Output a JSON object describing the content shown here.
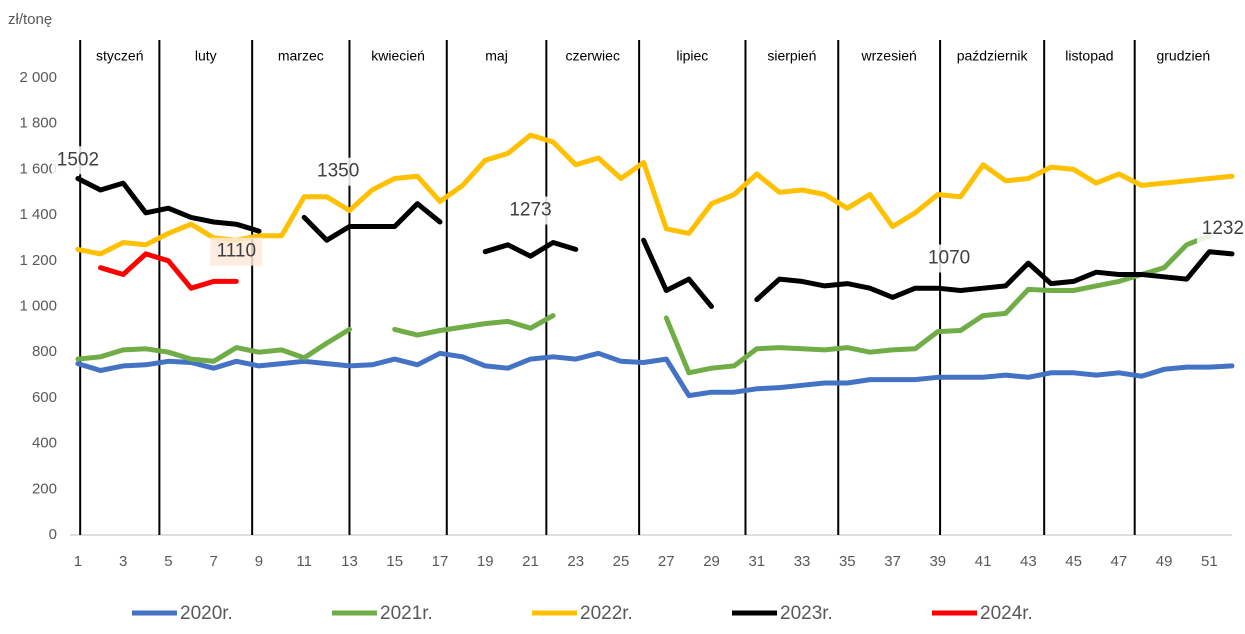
{
  "chart_data": {
    "type": "line",
    "y_label": "zł/tonę",
    "x": [
      1,
      2,
      3,
      4,
      5,
      6,
      7,
      8,
      9,
      10,
      11,
      12,
      13,
      14,
      15,
      16,
      17,
      18,
      19,
      20,
      21,
      22,
      23,
      24,
      25,
      26,
      27,
      28,
      29,
      30,
      31,
      32,
      33,
      34,
      35,
      36,
      37,
      38,
      39,
      40,
      41,
      42,
      43,
      44,
      45,
      46,
      47,
      48,
      49,
      50,
      51,
      52
    ],
    "xlim": [
      0.65,
      52
    ],
    "xticks": [
      1,
      3,
      5,
      7,
      9,
      11,
      13,
      15,
      17,
      19,
      21,
      23,
      25,
      27,
      29,
      31,
      33,
      35,
      37,
      39,
      41,
      43,
      45,
      47,
      49,
      51
    ],
    "ylim": [
      0,
      2000
    ],
    "yticks": [
      0,
      200,
      400,
      600,
      800,
      {
        "value": 1000,
        "label": "1 000"
      },
      {
        "value": 1200,
        "label": "1 200"
      },
      {
        "value": 1400,
        "label": "1 400"
      },
      {
        "value": 1600,
        "label": "1 600"
      },
      {
        "value": 1800,
        "label": "1 800"
      },
      {
        "value": 2000,
        "label": "2 000"
      }
    ],
    "grid": false,
    "legend": "bottom",
    "months": [
      "styczeń",
      "luty",
      "marzec",
      "kwiecień",
      "maj",
      "czerwiec",
      "lipiec",
      "sierpień",
      "wrzesień",
      "październik",
      "listopad",
      "grudzień"
    ],
    "month_starts": [
      1.1,
      4.6,
      8.7,
      13,
      17.3,
      21.7,
      25.8,
      30.5,
      34.6,
      39.1,
      43.7,
      47.7
    ],
    "series": [
      {
        "name": "2020r.",
        "color": "#4472c4",
        "values": [
          750,
          720,
          740,
          745,
          760,
          755,
          730,
          760,
          740,
          750,
          760,
          750,
          740,
          745,
          770,
          745,
          795,
          780,
          740,
          730,
          770,
          780,
          770,
          795,
          760,
          755,
          770,
          610,
          625,
          625,
          640,
          645,
          655,
          665,
          665,
          680,
          680,
          680,
          690,
          690,
          690,
          700,
          690,
          710,
          710,
          700,
          710,
          695,
          725,
          735,
          735,
          740
        ]
      },
      {
        "name": "2021r.",
        "color": "#70ad47",
        "values": [
          770,
          780,
          810,
          815,
          800,
          770,
          760,
          820,
          800,
          810,
          775,
          840,
          900,
          null,
          900,
          875,
          895,
          910,
          925,
          935,
          905,
          960,
          null,
          null,
          null,
          null,
          950,
          710,
          730,
          740,
          815,
          820,
          815,
          810,
          820,
          800,
          810,
          815,
          890,
          895,
          960,
          970,
          1075,
          1070,
          1070,
          1090,
          1110,
          1140,
          1170,
          1270,
          1310,
          null
        ]
      },
      {
        "name": "2022r.",
        "color": "#ffc000",
        "values": [
          1250,
          1230,
          1280,
          1270,
          1320,
          1360,
          1300,
          1290,
          1310,
          1310,
          1480,
          1480,
          1420,
          1510,
          1560,
          1570,
          1460,
          1530,
          1640,
          1670,
          1750,
          1720,
          1620,
          1650,
          1560,
          1630,
          1340,
          1320,
          1450,
          1490,
          1580,
          1500,
          1510,
          1490,
          1430,
          1490,
          1350,
          1410,
          1490,
          1480,
          1620,
          1550,
          1560,
          1610,
          1600,
          1540,
          1580,
          1530,
          1540,
          1550,
          1560,
          1570
        ]
      },
      {
        "name": "2023r.",
        "color": "#000000",
        "values": [
          1560,
          1510,
          1540,
          1410,
          1430,
          1390,
          1370,
          1360,
          1330,
          null,
          1390,
          1290,
          1350,
          1350,
          1350,
          1450,
          1370,
          null,
          1240,
          1270,
          1220,
          1280,
          1250,
          null,
          null,
          1290,
          1070,
          1120,
          1000,
          null,
          1030,
          1120,
          1110,
          1090,
          1100,
          1080,
          1040,
          1080,
          1080,
          1070,
          1080,
          1090,
          1190,
          1100,
          1110,
          1150,
          1140,
          1140,
          1130,
          1120,
          1240,
          1230
        ]
      },
      {
        "name": "2024r.",
        "color": "#ff0000",
        "values": [
          null,
          1170,
          1140,
          1230,
          1200,
          1080,
          1110,
          1110,
          null,
          null,
          null,
          null,
          null,
          null,
          null,
          null,
          null,
          null,
          null,
          null,
          null,
          null,
          null,
          null,
          null,
          null,
          null,
          null,
          null,
          null,
          null,
          null,
          null,
          null,
          null,
          null,
          null,
          null,
          null,
          null,
          null,
          null,
          null,
          null,
          null,
          null,
          null,
          null,
          null,
          null,
          null,
          null
        ]
      }
    ],
    "annotations": [
      {
        "text": "1502",
        "x": 1,
        "y": 1640
      },
      {
        "text": "1350",
        "x": 12.5,
        "y": 1590
      },
      {
        "text": "1110",
        "x": 8,
        "y": 1240
      },
      {
        "text": "1273",
        "x": 21,
        "y": 1420
      },
      {
        "text": "1070",
        "x": 39.5,
        "y": 1210
      },
      {
        "text": "1232",
        "x": 51.6,
        "y": 1340
      }
    ]
  }
}
